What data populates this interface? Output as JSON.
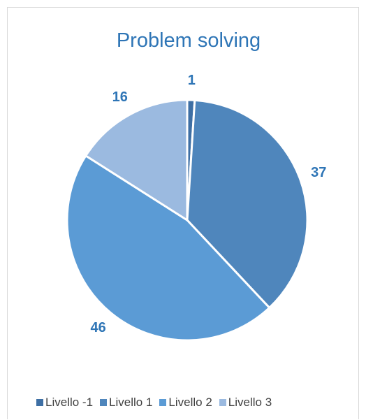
{
  "chart_data": {
    "type": "pie",
    "title": "Problem solving",
    "categories": [
      "Livello -1",
      "Livello 1",
      "Livello 2",
      "Livello 3"
    ],
    "values": [
      1,
      37,
      46,
      16
    ],
    "colors": [
      "#3e6fa4",
      "#4f86bc",
      "#5b9bd5",
      "#9bbae0"
    ],
    "label_color": "#2e75b6",
    "legend_position": "bottom"
  }
}
